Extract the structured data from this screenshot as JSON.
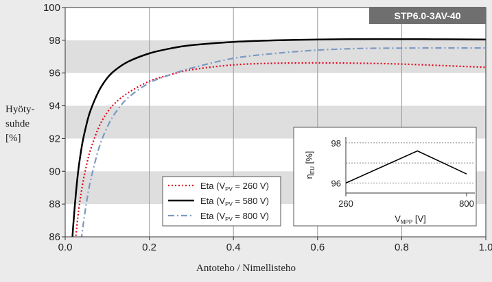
{
  "chart_data": [
    {
      "type": "line",
      "badge": "STP6.0-3AV-40",
      "ylabel_lines": [
        "Hyöty-",
        "suhde",
        "[%]"
      ],
      "xlabel": "Antoteho / Nimellisteho",
      "xlim": [
        0,
        1
      ],
      "ylim": [
        86,
        100
      ],
      "xticks": [
        "0.0",
        "0.2",
        "0.4",
        "0.6",
        "0.8",
        "1.0"
      ],
      "yticks": [
        "86",
        "88",
        "90",
        "92",
        "94",
        "96",
        "98",
        "100"
      ],
      "grid": "vertical lines, alternating horizontal bands",
      "legend_position": "bottom-center",
      "series": [
        {
          "name": "Eta (VPV = 260 V)",
          "name_base": "Eta (V",
          "name_sub": "PV",
          "name_rest": " = 260 V)",
          "color": "#e2001a",
          "style": "dotted",
          "x": [
            0.02,
            0.03,
            0.04,
            0.05,
            0.06,
            0.08,
            0.1,
            0.12,
            0.15,
            0.2,
            0.25,
            0.3,
            0.4,
            0.5,
            0.6,
            0.7,
            0.8,
            0.9,
            1.0
          ],
          "y": [
            84.6,
            87.2,
            89.0,
            90.3,
            91.3,
            92.7,
            93.6,
            94.2,
            94.8,
            95.5,
            95.9,
            96.2,
            96.5,
            96.6,
            96.62,
            96.6,
            96.55,
            96.45,
            96.35
          ]
        },
        {
          "name": "Eta (VPV = 580 V)",
          "name_base": "Eta (V",
          "name_sub": "PV",
          "name_rest": " = 580 V)",
          "color": "#000000",
          "style": "solid",
          "x": [
            0.015,
            0.02,
            0.03,
            0.04,
            0.05,
            0.06,
            0.08,
            0.1,
            0.12,
            0.15,
            0.2,
            0.25,
            0.3,
            0.4,
            0.5,
            0.6,
            0.7,
            0.8,
            0.9,
            1.0
          ],
          "y": [
            85.0,
            87.0,
            89.8,
            91.6,
            92.8,
            93.7,
            94.9,
            95.7,
            96.2,
            96.7,
            97.2,
            97.5,
            97.7,
            97.9,
            98.0,
            98.05,
            98.07,
            98.07,
            98.06,
            98.05
          ]
        },
        {
          "name": "Eta (VPV = 800 V)",
          "name_base": "Eta (V",
          "name_sub": "PV",
          "name_rest": " = 800 V)",
          "color": "#7a99c4",
          "style": "dashdot",
          "x": [
            0.035,
            0.04,
            0.05,
            0.06,
            0.08,
            0.1,
            0.12,
            0.15,
            0.2,
            0.25,
            0.3,
            0.4,
            0.5,
            0.6,
            0.7,
            0.8,
            0.9,
            1.0
          ],
          "y": [
            85.0,
            86.2,
            88.0,
            89.4,
            91.4,
            92.7,
            93.6,
            94.5,
            95.4,
            95.9,
            96.3,
            96.9,
            97.2,
            97.4,
            97.5,
            97.52,
            97.53,
            97.53
          ]
        }
      ]
    },
    {
      "type": "line",
      "ylabel_base": "η",
      "ylabel_sub": "EU",
      "ylabel_rest": " [%]",
      "xlabel_base": "V",
      "xlabel_sub": "MPP",
      "xlabel_rest": " [V]",
      "xlim": [
        260,
        800
      ],
      "ylim": [
        95.5,
        98.3
      ],
      "xticks": [
        "260",
        "800"
      ],
      "yticks": [
        "96",
        "98"
      ],
      "grid": "horizontal dotted lines",
      "series": [
        {
          "color": "#000000",
          "x": [
            260,
            580,
            800
          ],
          "y": [
            96.0,
            97.6,
            96.45
          ]
        }
      ]
    }
  ]
}
